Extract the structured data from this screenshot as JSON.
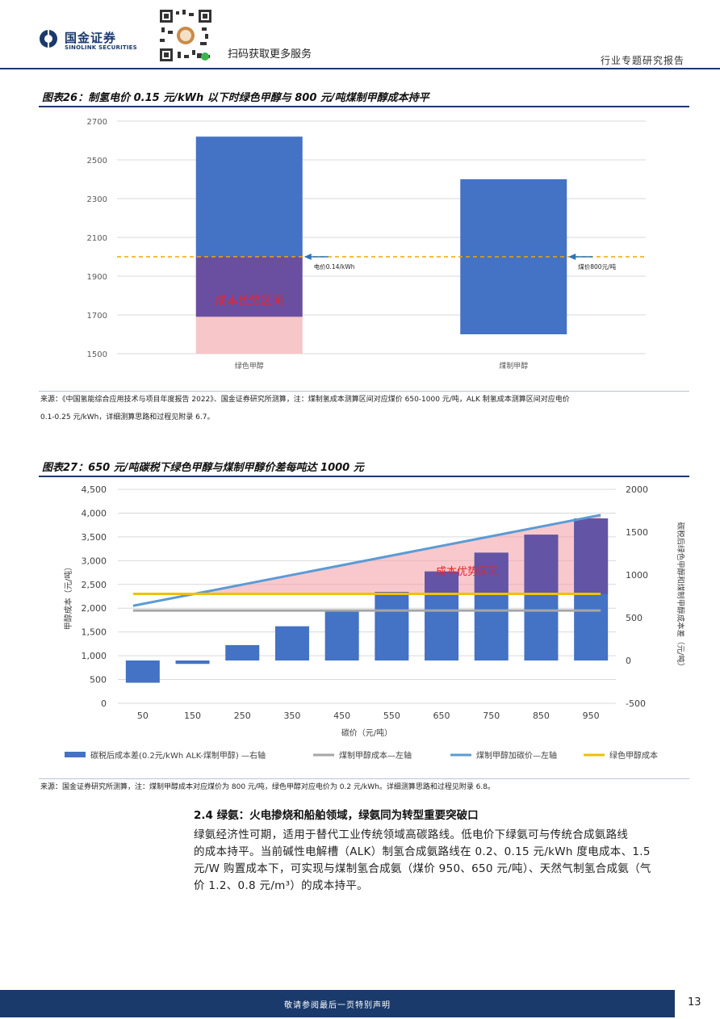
{
  "header": {
    "logo_cn": "国金证券",
    "logo_en": "SINOLINK SECURITIES",
    "scan_text": "扫码获取更多服务",
    "report_type": "行业专题研究报告"
  },
  "figure26": {
    "title": "图表26：制氢电价 0.15 元/kWh 以下时绿色甲醇与 800 元/吨煤制甲醇成本持平",
    "source_line1": "来源：《中国氢能综合应用技术与项目年度报告 2022》、国金证券研究所测算，注：煤制氢成本测算区间对应煤价 650-1000 元/吨，ALK 制氢成本测算区间对应电价",
    "source_line2": "0.1-0.25 元/kWh，详细测算思路和过程见附录 6.7。"
  },
  "figure27": {
    "title": "图表27：650 元/吨碳税下绿色甲醇与煤制甲醇价差每吨达 1000 元",
    "source": "来源：国金证券研究所测算，注：煤制甲醇成本对应煤价为 800 元/吨，绿色甲醇对应电价为 0.2 元/kWh。详细测算思路和过程见附录 6.8。"
  },
  "section": {
    "title": "2.4 绿氨：火电掺烧和船舶领域，绿氨同为转型重要突破口",
    "line1": "绿氨经济性可期，适用于替代工业传统领域高碳路线。低电价下绿氨可与传统合成氨路线",
    "line2": "的成本持平。当前碱性电解槽（ALK）制氢合成氨路线在 0.2、0.15 元/kWh 度电成本、1.5",
    "line3": "元/W 购置成本下，可实现与煤制氢合成氨（煤价 950、650 元/吨）、天然气制氢合成氨（气",
    "line4": "价 1.2、0.8 元/m³）的成本持平。"
  },
  "footer": {
    "disclaimer": "敬请参阅最后一页特别声明",
    "page": "13"
  },
  "colors": {
    "navy": "#1a3a6b",
    "bar_blue": "#4472c4",
    "advantage_purple": "#6a4fa0",
    "advantage_pink": "#f7c6c9",
    "dashed_orange": "#f0a500",
    "gray_line": "#a6a6a6",
    "lightblue_line": "#5b9bd5",
    "gold_line": "#f0c000",
    "red_label": "#e8232b"
  },
  "chart_data": [
    {
      "id": "fig26",
      "type": "bar",
      "subtype": "floating-range",
      "categories": [
        "绿色甲醇",
        "煤制甲醇"
      ],
      "ranges": [
        [
          1500,
          2620
        ],
        [
          1600,
          2400
        ]
      ],
      "ylim": [
        1500,
        2700
      ],
      "yticks": [
        1500,
        1700,
        1900,
        2100,
        2300,
        2500,
        2700
      ],
      "reference_line": {
        "y": 2000,
        "style": "dashed"
      },
      "advantage_zone": {
        "y_low": 1690,
        "y_high": 2000,
        "label": "成本优势区间"
      },
      "annotations": [
        {
          "category": "绿色甲醇",
          "y": 2000,
          "text": "电价0.14/kWh"
        },
        {
          "category": "煤制甲醇",
          "y": 2000,
          "text": "煤价800元/吨"
        }
      ],
      "grid": true
    },
    {
      "id": "fig27",
      "type": "bar",
      "subtype": "bar-line-dual-axis",
      "xlabel": "碳价（元/吨）",
      "ylabel_left": "甲醇成本（元/吨）",
      "ylabel_right": "碳税后绿色甲醇和煤制甲醇成本差（元/吨）",
      "categories": [
        "50",
        "150",
        "250",
        "350",
        "450",
        "550",
        "650",
        "750",
        "850",
        "950"
      ],
      "ylim_left": [
        0,
        4500
      ],
      "yticks_left": [
        "0",
        "500",
        "1,000",
        "1,500",
        "2,000",
        "2,500",
        "3,000",
        "3,500",
        "4,000",
        "4,500"
      ],
      "ylim_right": [
        -500,
        2000
      ],
      "yticks_right": [
        "-500",
        "0",
        "500",
        "1000",
        "1500",
        "2000"
      ],
      "series": [
        {
          "name": "碳税后成本差(0.2元/kWh ALK-煤制甲醇) —右轴",
          "axis": "right",
          "kind": "bar",
          "values": [
            -260,
            -40,
            180,
            400,
            580,
            800,
            1040,
            1260,
            1470,
            1660
          ]
        },
        {
          "name": "煤制甲醇成本—左轴",
          "axis": "left",
          "kind": "line",
          "values": [
            1950,
            1950,
            1950,
            1950,
            1950,
            1950,
            1950,
            1950,
            1950,
            1950
          ]
        },
        {
          "name": "煤制甲醇加碳价—左轴",
          "axis": "left",
          "kind": "line",
          "values": [
            2050,
            2260,
            2470,
            2680,
            2890,
            3100,
            3310,
            3520,
            3730,
            3960
          ]
        },
        {
          "name": "绿色甲醇成本",
          "axis": "left",
          "kind": "line",
          "values": [
            2300,
            2300,
            2300,
            2300,
            2300,
            2300,
            2300,
            2300,
            2300,
            2300
          ]
        }
      ],
      "advantage_label": "成本优势区间",
      "grid": true
    }
  ]
}
